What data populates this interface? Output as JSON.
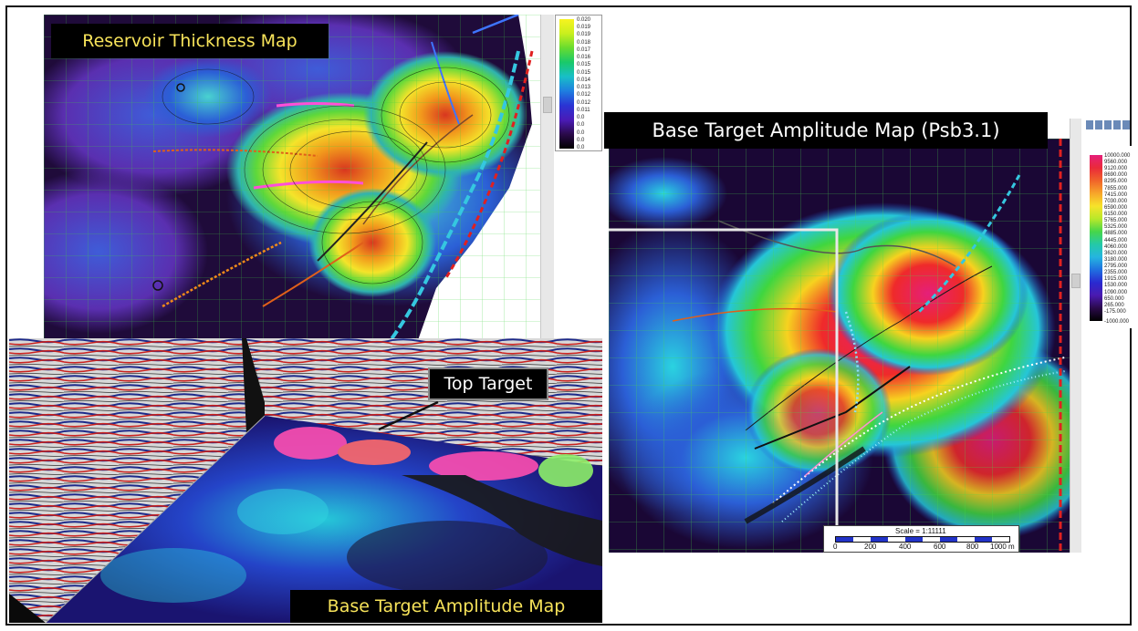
{
  "panels": {
    "thickness": {
      "title": "Reservoir Thickness Map",
      "legend_ticks": [
        "0.020",
        "0.019",
        "0.019",
        "0.018",
        "0.017",
        "0.016",
        "0.015",
        "0.015",
        "0.014",
        "0.013",
        "0.012",
        "0.012",
        "0.011",
        "0.0",
        "0.0",
        "0.0",
        "0.0"
      ],
      "legend_bottom": "0.0"
    },
    "base_amplitude_map": {
      "title": "Base Target Amplitude Map (Psb3.1)",
      "legend_ticks": [
        "10000.000",
        "9560.000",
        "9120.000",
        "8690.000",
        "8295.000",
        "7855.000",
        "7415.000",
        "7030.000",
        "6590.000",
        "6150.000",
        "5765.000",
        "5325.000",
        "4885.000",
        "4445.000",
        "4060.000",
        "3620.000",
        "3180.000",
        "2795.000",
        "2355.000",
        "1915.000",
        "1530.000",
        "1090.000",
        "650.000",
        "265.000",
        "-175.000"
      ],
      "legend_bottom": "-1000.000",
      "scale_label": "Scale = 1:11111",
      "scale_ticks": [
        "0",
        "200",
        "400",
        "600",
        "800",
        "1000 m"
      ]
    },
    "seismic_3d": {
      "title": "Base Target Amplitude Map",
      "callout": "Top Target"
    }
  },
  "colors": {
    "title_text": "#f7e35a",
    "frame": "#111111",
    "fault_cyan": "#35c7e0",
    "fault_red": "#e02020"
  }
}
